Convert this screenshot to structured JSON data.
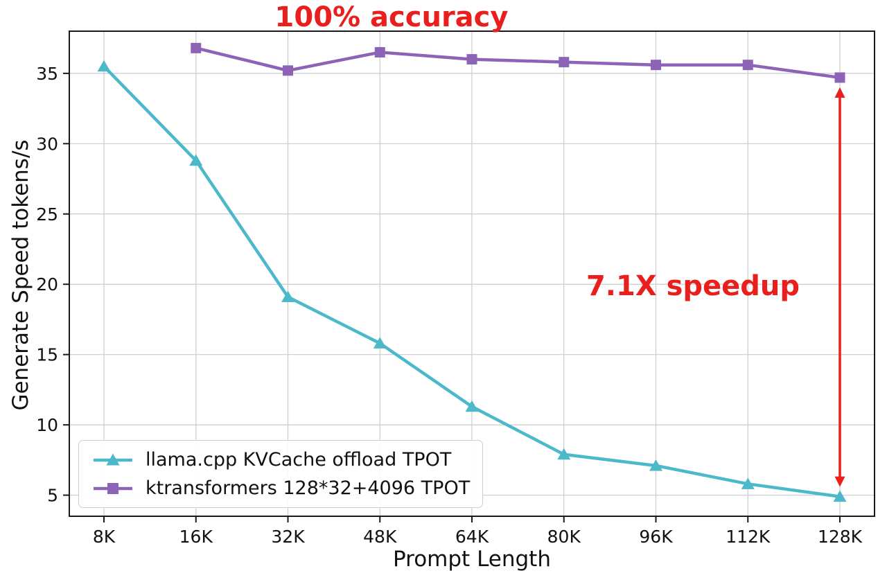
{
  "chart_data": {
    "type": "line",
    "title_annotation": "100% accuracy",
    "speedup_annotation": "7.1X speedup",
    "xlabel": "Prompt Length",
    "ylabel": "Generate Speed tokens/s",
    "categories": [
      "8K",
      "16K",
      "32K",
      "48K",
      "64K",
      "80K",
      "96K",
      "112K",
      "128K"
    ],
    "yticks": [
      5,
      10,
      15,
      20,
      25,
      30,
      35
    ],
    "ylim": [
      3.5,
      38
    ],
    "grid": true,
    "legend_position": "lower-left",
    "annotation_color": "#e81f1d",
    "series": [
      {
        "name": "llama.cpp KVCache offload TPOT",
        "color": "#4bb9c9",
        "marker": "triangle",
        "values": [
          35.5,
          28.8,
          19.1,
          15.8,
          11.3,
          7.9,
          7.1,
          5.8,
          4.9
        ]
      },
      {
        "name": "ktransformers 128*32+4096 TPOT",
        "color": "#8d63b8",
        "marker": "square",
        "values": [
          null,
          36.8,
          35.2,
          36.5,
          36.0,
          35.8,
          35.6,
          35.6,
          34.7
        ]
      }
    ],
    "arrow": {
      "category": "128K",
      "from": 34.7,
      "to": 4.9
    }
  }
}
